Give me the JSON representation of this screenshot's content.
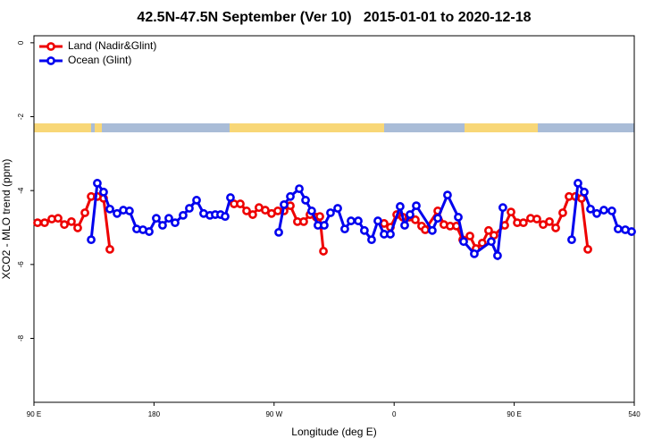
{
  "chart_data": {
    "type": "line",
    "title": "42.5N-47.5N September (Ver 10)   2015-01-01 to 2020-12-18",
    "xlabel": "Longitude (deg E)",
    "ylabel": "XCO2 - MLO trend (ppm)",
    "xlim": [
      90,
      540
    ],
    "ylim": [
      -9.73,
      0.19
    ],
    "xticks": [
      {
        "value": 90,
        "label": "90 E"
      },
      180,
      {
        "value": 270,
        "label": "90 W"
      },
      {
        "value": 360,
        "label": "0"
      },
      {
        "value": 450,
        "label": "90 E"
      },
      540
    ],
    "yticks": [
      0,
      -2,
      -4,
      -6,
      -8
    ],
    "legend": "top-left",
    "series": [
      {
        "name": "Land (Nadir&Glint)",
        "color": "#ee0000",
        "x": [
          92.7,
          98.0,
          103.4,
          108.1,
          112.8,
          118.1,
          122.8,
          128.2,
          132.9,
          137.5,
          142.2,
          146.9,
          null,
          240.0,
          244.7,
          249.4,
          254.0,
          258.7,
          263.4,
          268.1,
          272.8,
          277.5,
          282.2,
          287.5,
          292.2,
          296.9,
          301.6,
          304.3,
          307.0,
          null,
          352.5,
          357.2,
          361.9,
          366.5,
          371.2,
          375.9,
          380.6,
          383.3,
          392.7,
          397.3,
          402.0,
          406.7,
          411.4,
          416.8,
          421.4,
          426.1,
          430.8,
          434.8,
          442.9,
          447.6,
          452.3,
          456.9,
          462.3,
          467.0,
          471.7,
          476.4,
          481.1,
          486.4,
          491.1,
          495.8,
          500.5,
          505.2
        ],
        "values": [
          -4.87,
          -4.87,
          -4.77,
          -4.75,
          -4.92,
          -4.84,
          -5.01,
          -4.6,
          -4.16,
          -4.16,
          -4.21,
          -5.59,
          null,
          -4.36,
          -4.36,
          -4.55,
          -4.65,
          -4.46,
          -4.53,
          -4.62,
          -4.55,
          -4.55,
          -4.41,
          -4.84,
          -4.84,
          -4.65,
          -4.72,
          -4.7,
          -5.64,
          null,
          -4.89,
          -4.99,
          -4.65,
          -4.72,
          -4.72,
          -4.79,
          -4.96,
          -5.06,
          -4.55,
          -4.92,
          -4.96,
          -4.96,
          -5.33,
          -5.23,
          -5.57,
          -5.42,
          -5.08,
          -5.21,
          -4.94,
          -4.58,
          -4.87,
          -4.87,
          -4.75,
          -4.77,
          -4.92,
          -4.84,
          -5.01,
          -4.6,
          -4.16,
          -4.16,
          -4.21,
          -5.59
        ]
      },
      {
        "name": "Ocean (Glint)",
        "color": "#0000ee",
        "x": [
          132.9,
          137.5,
          142.2,
          146.9,
          152.3,
          157.0,
          161.6,
          167.0,
          171.7,
          176.4,
          181.7,
          186.4,
          191.1,
          195.8,
          201.8,
          206.5,
          211.9,
          217.2,
          221.9,
          225.9,
          229.9,
          233.3,
          237.3,
          null,
          273.5,
          277.5,
          282.2,
          288.9,
          293.6,
          298.2,
          302.9,
          307.6,
          312.3,
          317.7,
          323.0,
          327.7,
          333.1,
          337.7,
          343.1,
          347.8,
          352.5,
          357.2,
          364.5,
          367.9,
          371.9,
          376.6,
          388.6,
          392.7,
          400.0,
          408.1,
          412.1,
          420.1,
          432.8,
          437.5,
          441.5,
          null,
          493.1,
          497.8,
          502.5,
          507.2,
          511.9,
          517.2,
          523.2,
          527.9,
          533.3,
          538.0
        ],
        "values": [
          -5.33,
          -3.8,
          -4.04,
          -4.5,
          -4.62,
          -4.53,
          -4.55,
          -5.04,
          -5.06,
          -5.11,
          -4.75,
          -4.94,
          -4.75,
          -4.87,
          -4.67,
          -4.48,
          -4.26,
          -4.62,
          -4.67,
          -4.65,
          -4.65,
          -4.7,
          -4.19,
          null,
          -5.13,
          -4.38,
          -4.16,
          -3.95,
          -4.26,
          -4.55,
          -4.94,
          -4.94,
          -4.6,
          -4.48,
          -5.04,
          -4.82,
          -4.82,
          -5.08,
          -5.33,
          -4.82,
          -5.18,
          -5.18,
          -4.43,
          -4.94,
          -4.65,
          -4.41,
          -5.08,
          -4.75,
          -4.12,
          -4.72,
          -5.38,
          -5.71,
          -5.38,
          -5.76,
          -4.46,
          null,
          -5.33,
          -3.8,
          -4.04,
          -4.5,
          -4.62,
          -4.53,
          -4.55,
          -5.04,
          -5.06,
          -5.11
        ]
      }
    ]
  }
}
